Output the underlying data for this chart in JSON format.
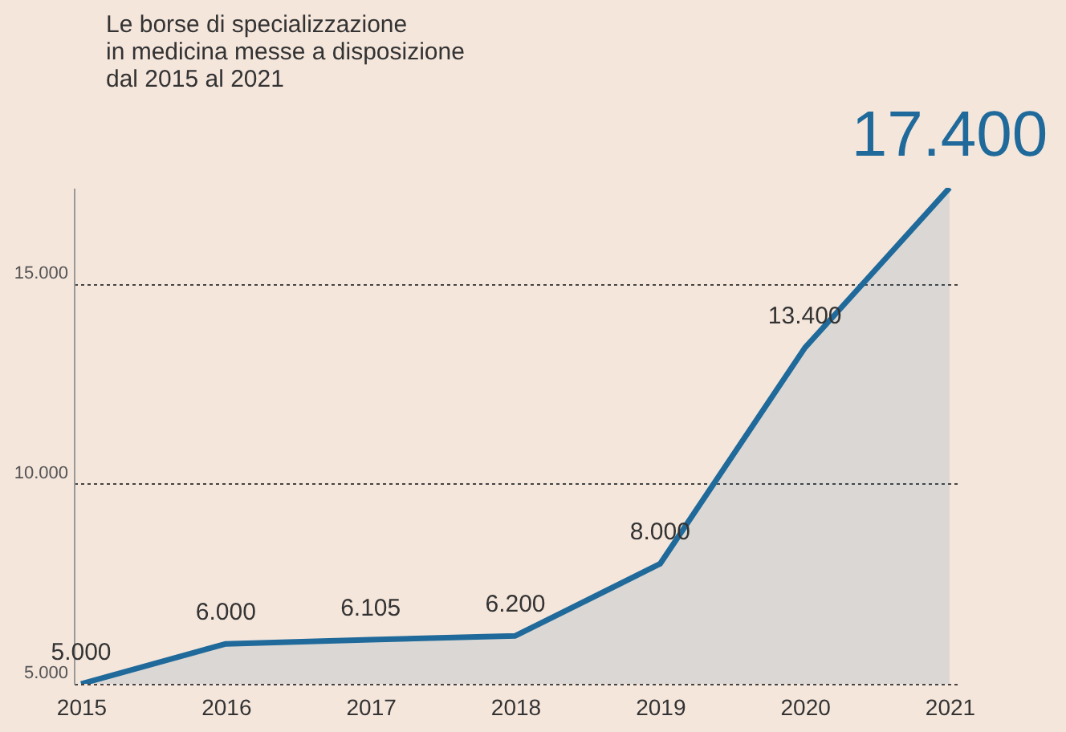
{
  "chart_data": {
    "type": "area",
    "title": "Le borse di specializzazione\nin medicina messe a disposizione\ndal 2015 al 2021",
    "categories": [
      "2015",
      "2016",
      "2017",
      "2018",
      "2019",
      "2020",
      "2021"
    ],
    "series": [
      {
        "color": "#1f6a9a",
        "values": [
          5000,
          6000,
          6105,
          6200,
          8000,
          13400,
          17400
        ]
      }
    ],
    "value_labels": [
      "5.000",
      "6.000",
      "6.105",
      "6.200",
      "8.000",
      "13.400",
      "17.400"
    ],
    "ylim": [
      5000,
      17400
    ],
    "yticks": [
      {
        "value": 5000,
        "label": "5.000"
      },
      {
        "value": 10000,
        "label": "10.000"
      },
      {
        "value": 15000,
        "label": "15.000"
      }
    ],
    "grid": "y"
  }
}
